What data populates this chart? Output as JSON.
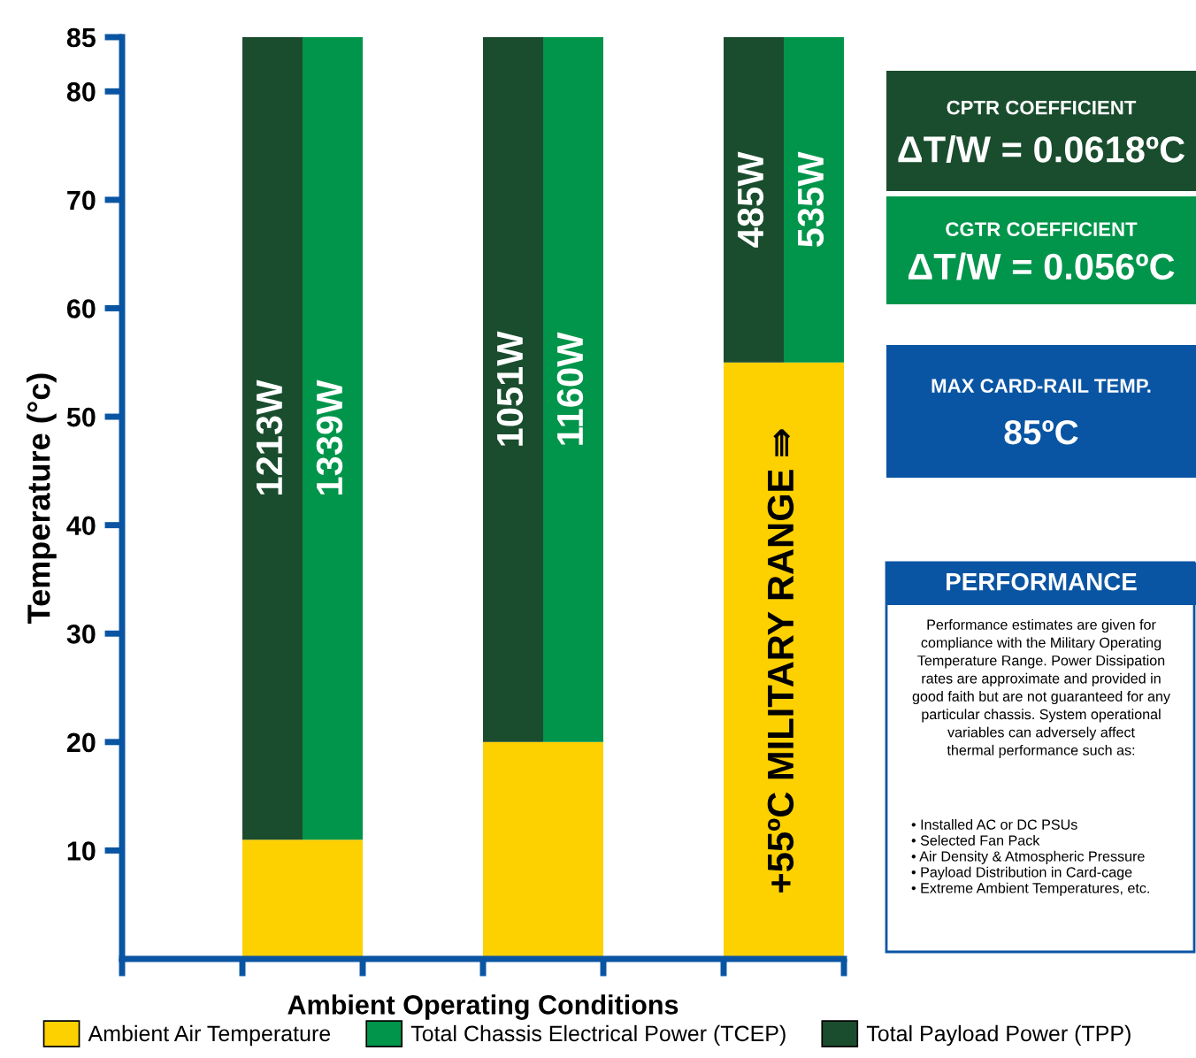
{
  "chart_data": [
    {
      "type": "bar",
      "ylabel": "Temperature (°c)",
      "xlabel": "Ambient Operating Conditions",
      "categories": [
        null,
        null,
        null
      ],
      "series": [
        {
          "name": "Ambient Air Temperature",
          "color": "#fdd000",
          "values": [
            11,
            20,
            55
          ]
        },
        {
          "name": "Total Chassis Electrical Power (TCEP)",
          "color": "#00954a",
          "base": [
            11,
            20,
            55
          ],
          "values": [
            74,
            65,
            30
          ]
        },
        {
          "name": "Total Payload Power (TPP)",
          "color": "#1a4d2e",
          "base": [
            11,
            20,
            55
          ],
          "values": [
            74,
            65,
            30
          ]
        }
      ],
      "annotations": [
        "1339W",
        "1160W",
        "535W",
        "1213W",
        "1051W",
        "485W",
        "+55ºC MILITARY RANGE ⇛"
      ],
      "ylim": [
        0,
        85
      ],
      "yticks": [
        10,
        20,
        30,
        40,
        50,
        60,
        70,
        80,
        85
      ],
      "grid": false,
      "legend": "bottom"
    },
    {
      "type": "other",
      "annotations": [
        "CPTR COEFFICIENT",
        "ΔT/W = 0.0618ºC",
        "CGTR COEFFICIENT",
        "ΔT/W = 0.056ºC",
        "MAX CARD-RAIL TEMP.",
        "85ºC",
        "PERFORMANCE",
        "Performance estimates are given for\ncompliance with the Military Operating\nTemperature Range. Power Dissipation\nrates are approximate and provided in\ngood faith but are not guaranteed for any\nparticular chassis. System operational\nvariables can adversely affect\nthermal performance such as:",
        "• Installed AC or DC PSUs\n• Selected Fan Pack\n• Air Density & Atmospheric Pressure\n• Payload Distribution in Card-cage\n• Extreme Ambient Temperatures, etc."
      ]
    }
  ]
}
